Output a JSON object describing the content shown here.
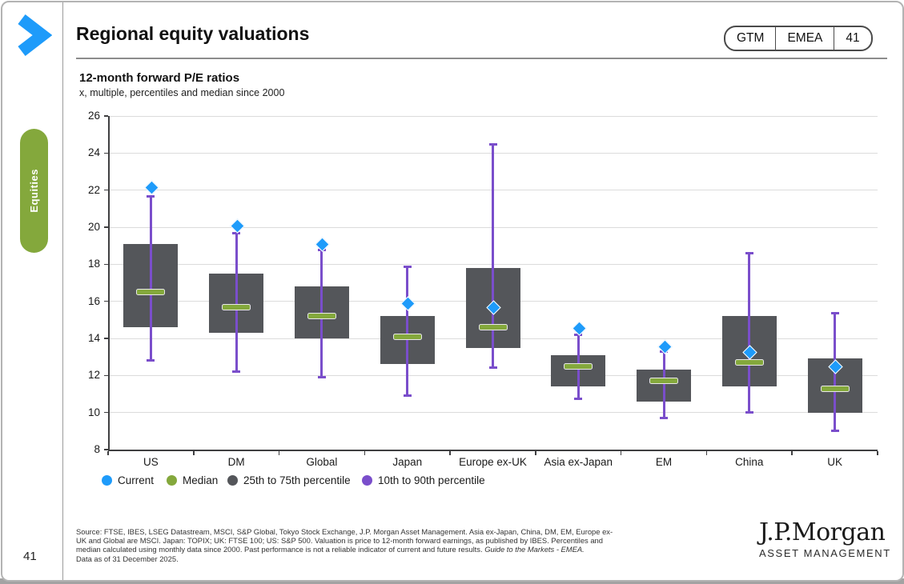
{
  "sidebar": {
    "section_label": "Equities",
    "page_number": "41"
  },
  "header": {
    "title": "Regional equity valuations",
    "badge": [
      "GTM",
      "EMEA",
      "41"
    ]
  },
  "chart_data": {
    "type": "boxplot",
    "title": "12-month forward P/E ratios",
    "subtitle": "x, multiple, percentiles and median since 2000",
    "ylim": [
      8,
      26
    ],
    "ytick_step": 2,
    "grid": true,
    "categories": [
      "US",
      "DM",
      "Global",
      "Japan",
      "Europe ex-UK",
      "Asia ex-Japan",
      "EM",
      "China",
      "UK"
    ],
    "series": [
      {
        "name": "Current",
        "values": [
          22.2,
          20.1,
          19.1,
          15.9,
          15.7,
          14.6,
          13.6,
          13.3,
          12.5
        ]
      },
      {
        "name": "Median",
        "values": [
          16.5,
          15.7,
          15.2,
          14.1,
          14.6,
          12.5,
          11.7,
          12.7,
          11.3
        ]
      },
      {
        "name": "75th percentile",
        "values": [
          19.1,
          17.5,
          16.8,
          15.2,
          17.8,
          13.1,
          12.3,
          15.2,
          12.9
        ]
      },
      {
        "name": "25th percentile",
        "values": [
          14.6,
          14.3,
          14.0,
          12.6,
          13.5,
          11.4,
          10.6,
          11.4,
          10.0
        ]
      },
      {
        "name": "90th percentile",
        "values": [
          21.7,
          19.7,
          18.8,
          17.9,
          24.5,
          14.2,
          13.3,
          18.6,
          15.4
        ]
      },
      {
        "name": "10th percentile",
        "values": [
          12.8,
          12.2,
          11.9,
          10.9,
          12.4,
          10.7,
          9.7,
          10.0,
          9.0
        ]
      }
    ],
    "legend": [
      {
        "label": "Current",
        "color": "#1e9bfa"
      },
      {
        "label": "Median",
        "color": "#84a83c"
      },
      {
        "label": "25th to 75th percentile",
        "color": "#54565a"
      },
      {
        "label": "10th to 90th percentile",
        "color": "#7a4ecb"
      }
    ],
    "colors": {
      "current": "#1e9bfa",
      "median": "#84a83c",
      "box": "#54565a",
      "whisker": "#7a4ecb",
      "accent_green": "#84a83c",
      "accent_blue": "#1e9bfa"
    }
  },
  "footer": {
    "line1": "Source: FTSE, IBES, LSEG Datastream, MSCI, S&P Global, Tokyo Stock Exchange, J.P. Morgan Asset Management. Asia ex-Japan, China, DM, EM, Europe ex-",
    "line2": "UK and Global are MSCI. Japan: TOPIX; UK: FTSE 100; US: S&P 500. Valuation is price to 12-month forward earnings, as published by IBES. Percentiles and",
    "line3_normal": "median calculated using monthly data since 2000. Past performance is not a reliable indicator of current and future results. ",
    "line3_italic": "Guide to the Markets - EMEA.",
    "line4": "Data as of 31 December 2025.",
    "logo_main": "J.P.Morgan",
    "logo_sub": "ASSET MANAGEMENT"
  }
}
